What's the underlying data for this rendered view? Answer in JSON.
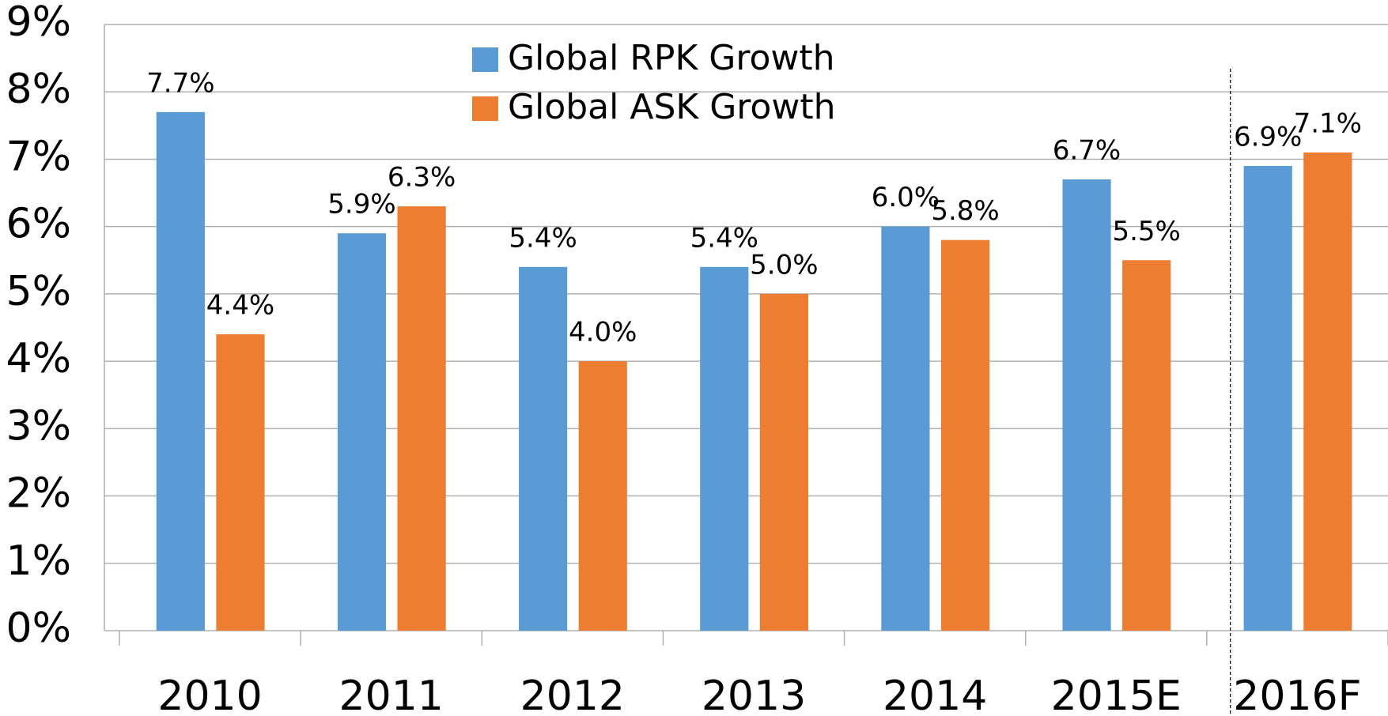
{
  "chart_data": {
    "type": "bar",
    "categories": [
      "2010",
      "2011",
      "2012",
      "2013",
      "2014",
      "2015E",
      "2016F"
    ],
    "series": [
      {
        "name": "Global RPK Growth",
        "color": "#5b9bd5",
        "values": [
          7.7,
          5.9,
          5.4,
          5.4,
          6.0,
          6.7,
          6.9
        ],
        "value_labels": [
          "7.7%",
          "5.9%",
          "5.4%",
          "5.4%",
          "6.0%",
          "6.7%",
          "6.9%"
        ]
      },
      {
        "name": "Global ASK Growth",
        "color": "#ed7d31",
        "values": [
          4.4,
          6.3,
          4.0,
          5.0,
          5.8,
          5.5,
          7.1
        ],
        "value_labels": [
          "4.4%",
          "6.3%",
          "4.0%",
          "5.0%",
          "5.8%",
          "5.5%",
          "7.1%"
        ]
      }
    ],
    "ylim": [
      0,
      9
    ],
    "yticks": [
      {
        "value": 0,
        "label": "0%"
      },
      {
        "value": 1,
        "label": "1%"
      },
      {
        "value": 2,
        "label": "2%"
      },
      {
        "value": 3,
        "label": "3%"
      },
      {
        "value": 4,
        "label": "4%"
      },
      {
        "value": 5,
        "label": "5%"
      },
      {
        "value": 6,
        "label": "6%"
      },
      {
        "value": 7,
        "label": "7%"
      },
      {
        "value": 8,
        "label": "8%"
      },
      {
        "value": 9,
        "label": "9%"
      }
    ],
    "grid": true,
    "legend": "top"
  }
}
